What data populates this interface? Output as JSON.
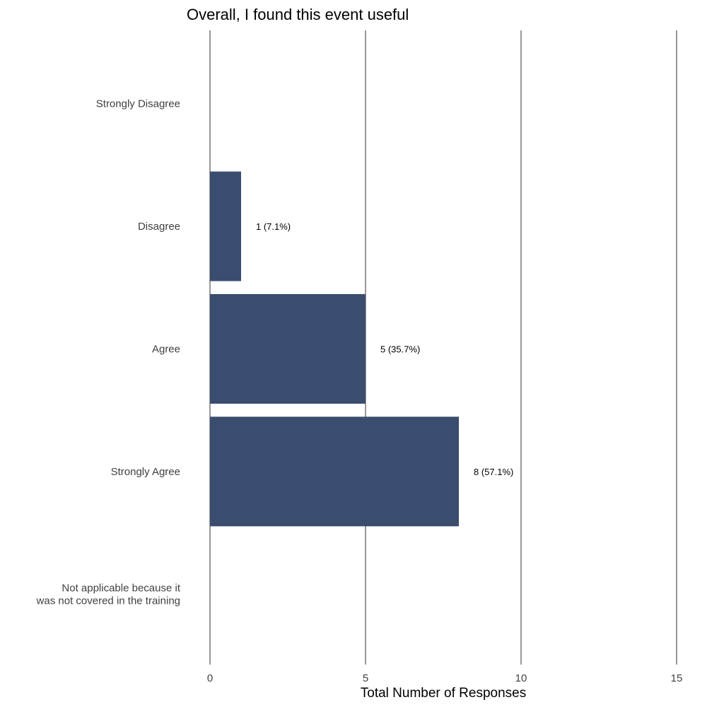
{
  "chart_data": {
    "type": "bar",
    "orientation": "horizontal",
    "title": "Overall, I found this event useful",
    "xlabel": "Total Number of Responses",
    "ylabel": "",
    "xlim": [
      0,
      15
    ],
    "x_ticks": [
      0,
      5,
      10,
      15
    ],
    "grid": true,
    "categories": [
      "Strongly Disagree",
      "Disagree",
      "Agree",
      "Strongly Agree",
      "Not applicable because it\nwas not covered in the training"
    ],
    "values": [
      0,
      1,
      5,
      8,
      0
    ],
    "data_labels": [
      "",
      "1 (7.1%)",
      "5 (35.7%)",
      "8 (57.1%)",
      ""
    ],
    "bar_color": "#3a4d6e"
  }
}
